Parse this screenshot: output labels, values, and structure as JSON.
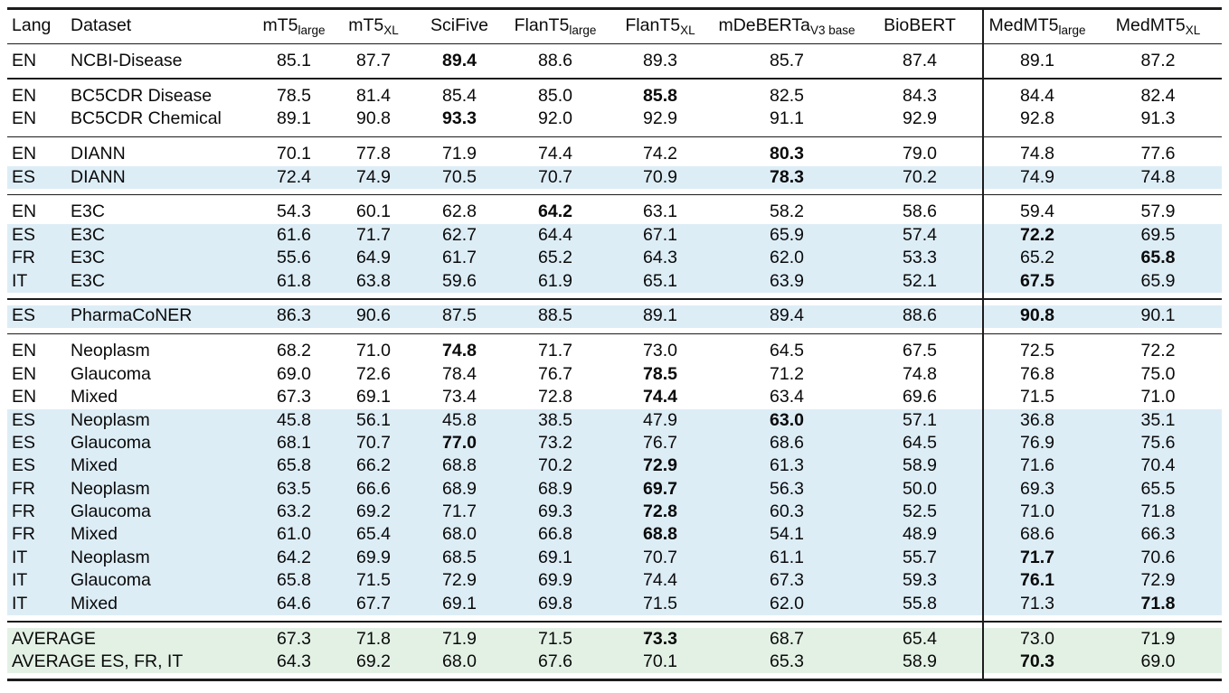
{
  "colors": {
    "row_highlight_blue": "#ddedf6",
    "row_highlight_green": "#e3f1e5",
    "rule_color": "#1c1c1c"
  },
  "table": {
    "columns": [
      {
        "label": "Lang",
        "sub": ""
      },
      {
        "label": "Dataset",
        "sub": ""
      },
      {
        "label": "mT5",
        "sub": "large"
      },
      {
        "label": "mT5",
        "sub": "XL"
      },
      {
        "label": "SciFive",
        "sub": ""
      },
      {
        "label": "FlanT5",
        "sub": "large"
      },
      {
        "label": "FlanT5",
        "sub": "XL"
      },
      {
        "label": "mDeBERTa",
        "sub": "V3 base"
      },
      {
        "label": "BioBERT",
        "sub": ""
      },
      {
        "label": "MedMT5",
        "sub": "large"
      },
      {
        "label": "MedMT5",
        "sub": "XL"
      }
    ],
    "sections": [
      {
        "rows": [
          {
            "lang": "EN",
            "dataset": "NCBI-Disease",
            "highlight": "white",
            "values": [
              "85.1",
              "87.7",
              "89.4",
              "88.6",
              "89.3",
              "85.7",
              "87.4",
              "89.1",
              "87.2"
            ],
            "bold": 2
          }
        ]
      },
      {
        "rows": [
          {
            "lang": "EN",
            "dataset": "BC5CDR Disease",
            "highlight": "white",
            "values": [
              "78.5",
              "81.4",
              "85.4",
              "85.0",
              "85.8",
              "82.5",
              "84.3",
              "84.4",
              "82.4"
            ],
            "bold": 4
          },
          {
            "lang": "EN",
            "dataset": "BC5CDR Chemical",
            "highlight": "white",
            "values": [
              "89.1",
              "90.8",
              "93.3",
              "92.0",
              "92.9",
              "91.1",
              "92.9",
              "92.8",
              "91.3"
            ],
            "bold": 2
          }
        ]
      },
      {
        "rows": [
          {
            "lang": "EN",
            "dataset": "DIANN",
            "highlight": "white",
            "values": [
              "70.1",
              "77.8",
              "71.9",
              "74.4",
              "74.2",
              "80.3",
              "79.0",
              "74.8",
              "77.6"
            ],
            "bold": 5
          },
          {
            "lang": "ES",
            "dataset": "DIANN",
            "highlight": "blue",
            "values": [
              "72.4",
              "74.9",
              "70.5",
              "70.7",
              "70.9",
              "78.3",
              "70.2",
              "74.9",
              "74.8"
            ],
            "bold": 5
          }
        ]
      },
      {
        "rows": [
          {
            "lang": "EN",
            "dataset": "E3C",
            "highlight": "white",
            "values": [
              "54.3",
              "60.1",
              "62.8",
              "64.2",
              "63.1",
              "58.2",
              "58.6",
              "59.4",
              "57.9"
            ],
            "bold": 3
          },
          {
            "lang": "ES",
            "dataset": "E3C",
            "highlight": "blue",
            "values": [
              "61.6",
              "71.7",
              "62.7",
              "64.4",
              "67.1",
              "65.9",
              "57.4",
              "72.2",
              "69.5"
            ],
            "bold": 7
          },
          {
            "lang": "FR",
            "dataset": "E3C",
            "highlight": "blue",
            "values": [
              "55.6",
              "64.9",
              "61.7",
              "65.2",
              "64.3",
              "62.0",
              "53.3",
              "65.2",
              "65.8"
            ],
            "bold": 8
          },
          {
            "lang": "IT",
            "dataset": "E3C",
            "highlight": "blue",
            "values": [
              "61.8",
              "63.8",
              "59.6",
              "61.9",
              "65.1",
              "63.9",
              "52.1",
              "67.5",
              "65.9"
            ],
            "bold": 7
          }
        ]
      },
      {
        "rows": [
          {
            "lang": "ES",
            "dataset": "PharmaCoNER",
            "highlight": "blue",
            "values": [
              "86.3",
              "90.6",
              "87.5",
              "88.5",
              "89.1",
              "89.4",
              "88.6",
              "90.8",
              "90.1"
            ],
            "bold": 7
          }
        ]
      },
      {
        "rows": [
          {
            "lang": "EN",
            "dataset": "Neoplasm",
            "highlight": "white",
            "values": [
              "68.2",
              "71.0",
              "74.8",
              "71.7",
              "73.0",
              "64.5",
              "67.5",
              "72.5",
              "72.2"
            ],
            "bold": 2
          },
          {
            "lang": "EN",
            "dataset": "Glaucoma",
            "highlight": "white",
            "values": [
              "69.0",
              "72.6",
              "78.4",
              "76.7",
              "78.5",
              "71.2",
              "74.8",
              "76.8",
              "75.0"
            ],
            "bold": 4
          },
          {
            "lang": "EN",
            "dataset": "Mixed",
            "highlight": "white",
            "values": [
              "67.3",
              "69.1",
              "73.4",
              "72.8",
              "74.4",
              "63.4",
              "69.6",
              "71.5",
              "71.0"
            ],
            "bold": 4
          },
          {
            "lang": "ES",
            "dataset": "Neoplasm",
            "highlight": "blue",
            "values": [
              "45.8",
              "56.1",
              "45.8",
              "38.5",
              "47.9",
              "63.0",
              "57.1",
              "36.8",
              "35.1"
            ],
            "bold": 5
          },
          {
            "lang": "ES",
            "dataset": "Glaucoma",
            "highlight": "blue",
            "values": [
              "68.1",
              "70.7",
              "77.0",
              "73.2",
              "76.7",
              "68.6",
              "64.5",
              "76.9",
              "75.6"
            ],
            "bold": 2
          },
          {
            "lang": "ES",
            "dataset": "Mixed",
            "highlight": "blue",
            "values": [
              "65.8",
              "66.2",
              "68.8",
              "70.2",
              "72.9",
              "61.3",
              "58.9",
              "71.6",
              "70.4"
            ],
            "bold": 4
          },
          {
            "lang": "FR",
            "dataset": "Neoplasm",
            "highlight": "blue",
            "values": [
              "63.5",
              "66.6",
              "68.9",
              "68.9",
              "69.7",
              "56.3",
              "50.0",
              "69.3",
              "65.5"
            ],
            "bold": 4
          },
          {
            "lang": "FR",
            "dataset": "Glaucoma",
            "highlight": "blue",
            "values": [
              "63.2",
              "69.2",
              "71.7",
              "69.3",
              "72.8",
              "60.3",
              "52.5",
              "71.0",
              "71.8"
            ],
            "bold": 4
          },
          {
            "lang": "FR",
            "dataset": "Mixed",
            "highlight": "blue",
            "values": [
              "61.0",
              "65.4",
              "68.0",
              "66.8",
              "68.8",
              "54.1",
              "48.9",
              "68.6",
              "66.3"
            ],
            "bold": 4
          },
          {
            "lang": "IT",
            "dataset": "Neoplasm",
            "highlight": "blue",
            "values": [
              "64.2",
              "69.9",
              "68.5",
              "69.1",
              "70.7",
              "61.1",
              "55.7",
              "71.7",
              "70.6"
            ],
            "bold": 7
          },
          {
            "lang": "IT",
            "dataset": "Glaucoma",
            "highlight": "blue",
            "values": [
              "65.8",
              "71.5",
              "72.9",
              "69.9",
              "74.4",
              "67.3",
              "59.3",
              "76.1",
              "72.9"
            ],
            "bold": 7
          },
          {
            "lang": "IT",
            "dataset": "Mixed",
            "highlight": "blue",
            "values": [
              "64.6",
              "67.7",
              "69.1",
              "69.8",
              "71.5",
              "62.0",
              "55.8",
              "71.3",
              "71.8"
            ],
            "bold": 8
          }
        ]
      },
      {
        "rows": [
          {
            "lang": "",
            "dataset": "AVERAGE",
            "highlight": "green",
            "span2": true,
            "values": [
              "67.3",
              "71.8",
              "71.9",
              "71.5",
              "73.3",
              "68.7",
              "65.4",
              "73.0",
              "71.9"
            ],
            "bold": 4
          },
          {
            "lang": "",
            "dataset": "AVERAGE ES, FR, IT",
            "highlight": "green",
            "span2": true,
            "values": [
              "64.3",
              "69.2",
              "68.0",
              "67.6",
              "70.1",
              "65.3",
              "58.9",
              "70.3",
              "69.0"
            ],
            "bold": 7
          }
        ]
      }
    ]
  }
}
